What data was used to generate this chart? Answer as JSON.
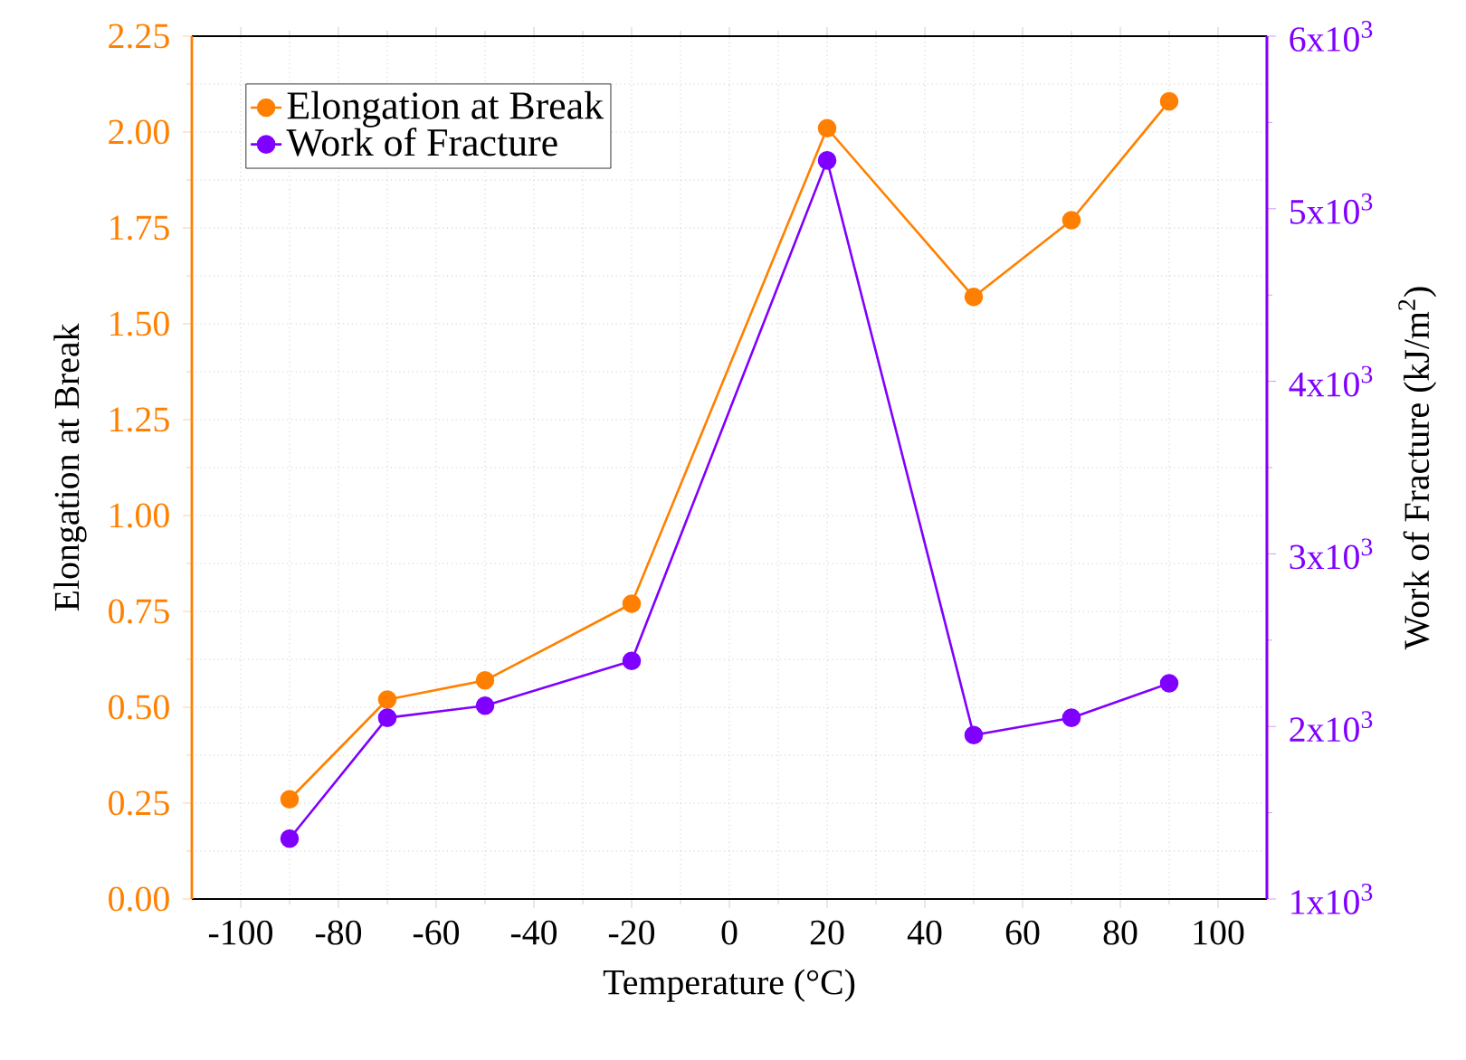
{
  "chart_data": {
    "type": "line",
    "xlabel": "Temperature (°C)",
    "ylabel": "Elongation at Break",
    "y2label": "Work of Fracture (kJ/m$^{2}$)",
    "x": [
      -90,
      -70,
      -50,
      -20,
      20,
      50,
      70,
      90
    ],
    "series": [
      {
        "name": "Elongation at Break",
        "color": "#ff8000",
        "values": [
          0.26,
          0.52,
          0.57,
          0.77,
          2.01,
          1.57,
          1.77,
          2.08
        ]
      },
      {
        "name": "Work of Fracture",
        "color": "#8000ff",
        "axis": "y2",
        "values": [
          1350,
          2050,
          2120,
          2380,
          5280,
          1950,
          2050,
          2250
        ]
      }
    ],
    "xlim": [
      -110,
      110
    ],
    "xticks": [
      -100,
      -80,
      -60,
      -40,
      -20,
      0,
      20,
      40,
      60,
      80,
      100
    ],
    "ylim": [
      0,
      2.25
    ],
    "yticks": [
      {
        "value": 0,
        "label": "0.00"
      },
      {
        "value": 0.25,
        "label": "0.25"
      },
      {
        "value": 0.5,
        "label": "0.50"
      },
      {
        "value": 0.75,
        "label": "0.75"
      },
      {
        "value": 1,
        "label": "1.00"
      },
      {
        "value": 1.25,
        "label": "1.25"
      },
      {
        "value": 1.5,
        "label": "1.50"
      },
      {
        "value": 1.75,
        "label": "1.75"
      },
      {
        "value": 2,
        "label": "2.00"
      },
      {
        "value": 2.25,
        "label": "2.25"
      }
    ],
    "y2lim": [
      1000,
      6000
    ],
    "y2ticks": [
      {
        "value": 1000,
        "label": "1x10$^{3}$"
      },
      {
        "value": 2000,
        "label": "2x10$^{3}$"
      },
      {
        "value": 3000,
        "label": "3x10$^{3}$"
      },
      {
        "value": 4000,
        "label": "4x10$^{3}$"
      },
      {
        "value": 5000,
        "label": "5x10$^{3}$"
      },
      {
        "value": 6000,
        "label": "6x10$^{3}$"
      }
    ],
    "grid": true,
    "legend": "top left",
    "marker": "circle",
    "line_style": "solid"
  }
}
